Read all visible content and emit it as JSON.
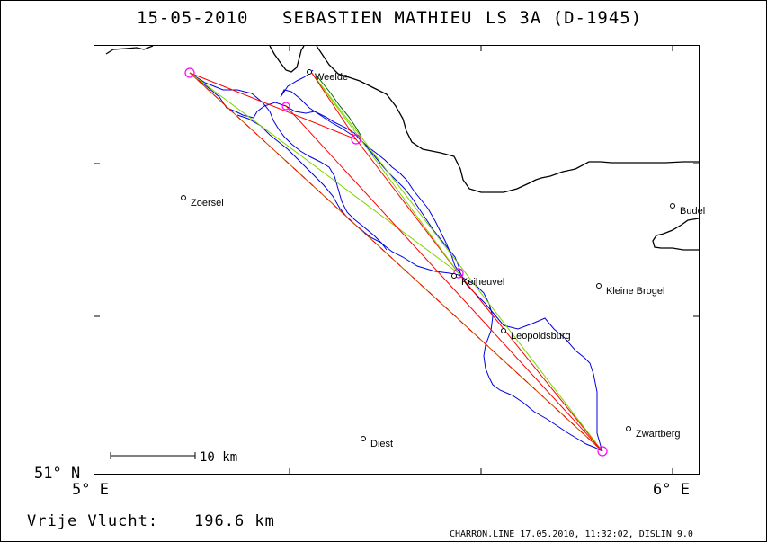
{
  "header": {
    "date": "15-05-2010",
    "pilot": "SEBASTIEN MATHIEU",
    "glider": "LS 3A (D-1945)"
  },
  "axes": {
    "lat_label": "51° N",
    "lon_left_label": "5° E",
    "lon_right_label": "6° E"
  },
  "scale_bar": {
    "label": "10 km"
  },
  "towns": [
    {
      "name": "Weelde"
    },
    {
      "name": "Zoersel"
    },
    {
      "name": "Budel"
    },
    {
      "name": "Keiheuvel"
    },
    {
      "name": "Kleine Brogel"
    },
    {
      "name": "Leopoldsburg"
    },
    {
      "name": "Zwartberg"
    },
    {
      "name": "Diest"
    }
  ],
  "footer": {
    "distance_label": "Vrije Vlucht:",
    "distance_value": "196.6 km",
    "credits": "CHARRON.LINE 17.05.2010, 11:32:02, DISLIN 9.0"
  },
  "colors": {
    "border": "#000000",
    "track": "#0000e0",
    "route_red": "#ff0000",
    "route_green": "#7fd400",
    "route_dark_green": "#006400",
    "turnpoint": "#ff00ff"
  }
}
